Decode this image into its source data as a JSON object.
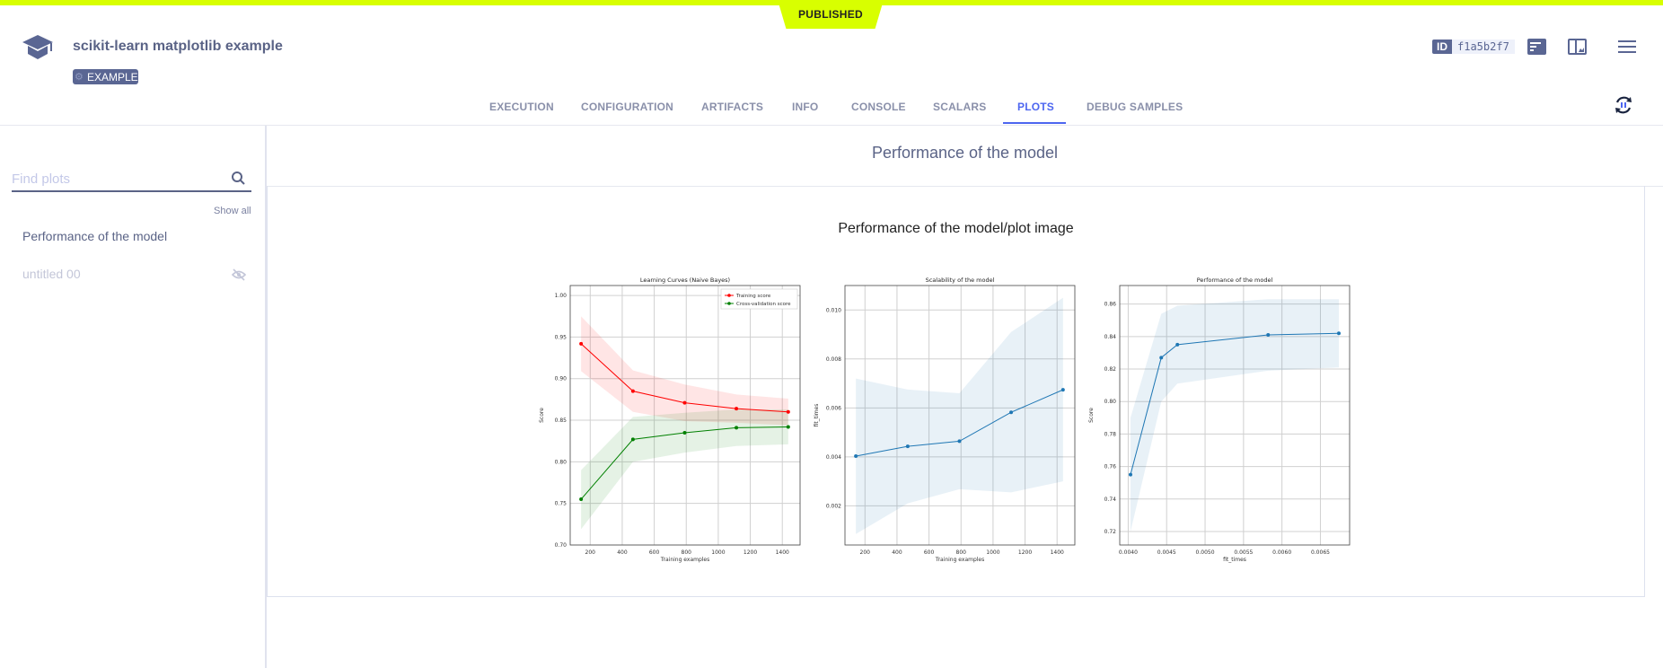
{
  "header": {
    "status": "PUBLISHED",
    "title": "scikit-learn matplotlib example",
    "tag": "EXAMPLE",
    "id_label": "ID",
    "id_value": "f1a5b2f7"
  },
  "tabs": [
    {
      "label": "EXECUTION"
    },
    {
      "label": "CONFIGURATION"
    },
    {
      "label": "ARTIFACTS"
    },
    {
      "label": "INFO"
    },
    {
      "label": "CONSOLE"
    },
    {
      "label": "SCALARS"
    },
    {
      "label": "PLOTS",
      "active": true
    },
    {
      "label": "DEBUG SAMPLES"
    }
  ],
  "sidebar": {
    "search_placeholder": "Find plots",
    "show_all": "Show all",
    "items": [
      {
        "label": "Performance of the model",
        "hidden": false
      },
      {
        "label": "untitled 00",
        "hidden": true
      }
    ]
  },
  "main": {
    "section_title": "Performance of the model",
    "plot_title": "Performance of the model/plot image"
  },
  "colors": {
    "accent": "#d8ff00",
    "active_tab": "#4d66f0",
    "primary": "#5a6693"
  },
  "chart_data": [
    {
      "type": "line",
      "title": "Learning Curves (Naive Bayes)",
      "xlabel": "Training examples",
      "ylabel": "Score",
      "xlim": [
        75,
        1511
      ],
      "ylim": [
        0.7,
        1.012
      ],
      "grid": true,
      "legend": "top-right",
      "xticks": [
        200,
        400,
        600,
        800,
        1000,
        1200,
        1400
      ],
      "yticks": [
        0.7,
        0.75,
        0.8,
        0.85,
        0.9,
        0.95,
        1.0
      ],
      "ytick_decimals": 2,
      "series": [
        {
          "name": "Training score",
          "color": "#ff0000",
          "x": [
            143,
            467,
            790,
            1113,
            1437
          ],
          "y": [
            0.942,
            0.885,
            0.871,
            0.864,
            0.86
          ],
          "upper": [
            0.975,
            0.91,
            0.893,
            0.881,
            0.876
          ],
          "lower": [
            0.909,
            0.86,
            0.849,
            0.847,
            0.844
          ]
        },
        {
          "name": "Cross-validation score",
          "color": "#008000",
          "x": [
            143,
            467,
            790,
            1113,
            1437
          ],
          "y": [
            0.755,
            0.827,
            0.835,
            0.841,
            0.842
          ],
          "upper": [
            0.79,
            0.854,
            0.859,
            0.863,
            0.863
          ],
          "lower": [
            0.719,
            0.8,
            0.811,
            0.819,
            0.821
          ]
        }
      ]
    },
    {
      "type": "line",
      "title": "Scalability of the model",
      "xlabel": "Training examples",
      "ylabel": "fit_times",
      "xlim": [
        75,
        1511
      ],
      "ylim": [
        0.0004,
        0.011
      ],
      "grid": true,
      "xticks": [
        200,
        400,
        600,
        800,
        1000,
        1200,
        1400
      ],
      "yticks": [
        0.002,
        0.004,
        0.006,
        0.008,
        0.01
      ],
      "ytick_decimals": 3,
      "series": [
        {
          "color": "#1f77b4",
          "x": [
            143,
            467,
            790,
            1113,
            1437
          ],
          "y": [
            0.00403,
            0.00443,
            0.00464,
            0.00582,
            0.00674
          ],
          "upper": [
            0.0072,
            0.00675,
            0.0066,
            0.0091,
            0.0105
          ],
          "lower": [
            0.00085,
            0.0021,
            0.00268,
            0.00255,
            0.003
          ]
        }
      ]
    },
    {
      "type": "line",
      "title": "Performance of the model",
      "xlabel": "fit_times",
      "ylabel": "Score",
      "xlim": [
        0.00389,
        0.00688
      ],
      "ylim": [
        0.7117,
        0.8714
      ],
      "grid": true,
      "xticks": [
        0.004,
        0.0045,
        0.005,
        0.0055,
        0.006,
        0.0065
      ],
      "xtick_decimals": 4,
      "yticks": [
        0.72,
        0.74,
        0.76,
        0.78,
        0.8,
        0.82,
        0.84,
        0.86
      ],
      "ytick_decimals": 2,
      "series": [
        {
          "color": "#1f77b4",
          "x": [
            0.00403,
            0.00443,
            0.00464,
            0.00582,
            0.00674
          ],
          "y": [
            0.755,
            0.827,
            0.835,
            0.841,
            0.842
          ],
          "upper": [
            0.79,
            0.854,
            0.859,
            0.863,
            0.863
          ],
          "lower": [
            0.72,
            0.8,
            0.811,
            0.819,
            0.821
          ]
        }
      ]
    }
  ]
}
